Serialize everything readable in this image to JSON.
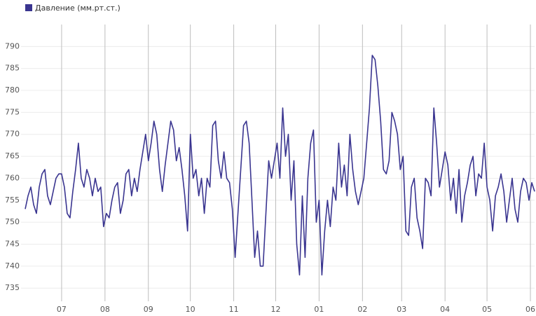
{
  "chart_data": {
    "type": "line",
    "series": [
      {
        "name": "Давление (мм.рт.ст.)",
        "color": "#3a3590",
        "values": [
          753,
          756,
          758,
          754,
          752,
          758,
          761,
          762,
          756,
          754,
          757,
          760,
          761,
          761,
          758,
          752,
          751,
          757,
          762,
          768,
          760,
          758,
          762,
          760,
          756,
          760,
          757,
          758,
          749,
          752,
          751,
          755,
          758,
          759,
          752,
          755,
          761,
          762,
          756,
          760,
          757,
          762,
          766,
          770,
          764,
          768,
          773,
          770,
          762,
          757,
          763,
          768,
          773,
          771,
          764,
          767,
          762,
          756,
          748,
          770,
          760,
          762,
          756,
          760,
          752,
          760,
          758,
          772,
          773,
          764,
          760,
          766,
          760,
          759,
          753,
          742,
          752,
          762,
          772,
          773,
          768,
          755,
          742,
          748,
          740,
          740,
          752,
          764,
          760,
          764,
          768,
          760,
          776,
          765,
          770,
          755,
          764,
          745,
          738,
          756,
          742,
          760,
          768,
          771,
          750,
          755,
          738,
          748,
          755,
          749,
          758,
          755,
          768,
          758,
          763,
          756,
          770,
          762,
          757,
          754,
          757,
          760,
          768,
          776,
          788,
          787,
          781,
          773,
          762,
          761,
          764,
          775,
          773,
          770,
          762,
          765,
          748,
          747,
          758,
          760,
          751,
          748,
          744,
          760,
          759,
          756,
          776,
          768,
          758,
          762,
          766,
          763,
          755,
          760,
          752,
          762,
          750,
          756,
          759,
          763,
          765,
          756,
          761,
          760,
          768,
          758,
          755,
          748,
          756,
          758,
          761,
          757,
          750,
          755,
          760,
          753,
          750,
          757,
          760,
          759,
          755,
          759,
          757
        ]
      }
    ],
    "x": [
      0,
      2,
      4,
      6,
      8,
      10,
      12,
      14,
      16,
      18,
      20,
      22,
      24,
      26,
      28,
      30,
      32,
      34,
      36,
      38,
      40,
      42,
      44,
      46,
      48,
      50,
      52,
      54,
      56,
      58,
      60,
      62,
      64,
      66,
      68,
      70,
      72,
      74,
      76,
      78,
      80,
      82,
      84,
      86,
      88,
      90,
      92,
      94,
      96,
      98,
      100,
      102,
      104,
      106,
      108,
      110,
      112,
      114,
      116,
      118,
      120,
      122,
      124,
      126,
      128,
      130,
      132,
      134,
      136,
      138,
      140,
      142,
      144,
      146,
      148,
      150,
      152,
      154,
      156,
      158,
      160,
      162,
      164,
      166,
      168,
      170,
      172,
      174,
      176,
      178,
      180,
      182,
      184,
      186,
      188,
      190,
      192,
      194,
      196,
      198,
      200,
      202,
      204,
      206,
      208,
      210,
      212,
      214,
      216,
      218,
      220,
      222,
      224,
      226,
      228,
      230,
      232,
      234,
      236,
      238,
      240,
      242,
      244,
      246,
      248,
      250,
      252,
      254,
      256,
      258,
      260,
      262,
      264,
      266,
      268,
      270,
      272,
      274,
      276,
      278,
      280,
      282,
      284,
      286,
      288,
      290,
      292,
      294,
      296,
      298,
      300,
      302,
      304,
      306,
      308,
      310,
      312,
      314,
      316,
      318,
      320,
      322,
      324,
      326,
      328,
      330,
      332,
      334,
      336,
      338,
      340,
      342,
      344,
      346,
      348,
      350,
      352,
      354,
      356,
      358,
      360,
      362,
      364
    ],
    "xlim": [
      -3,
      364
    ],
    "xticks": [
      {
        "value": 26,
        "label": "07"
      },
      {
        "value": 57,
        "label": "08"
      },
      {
        "value": 88,
        "label": "09"
      },
      {
        "value": 118,
        "label": "10"
      },
      {
        "value": 149,
        "label": "11"
      },
      {
        "value": 179,
        "label": "12"
      },
      {
        "value": 210,
        "label": "01"
      },
      {
        "value": 241,
        "label": "02"
      },
      {
        "value": 269,
        "label": "03"
      },
      {
        "value": 300,
        "label": "04"
      },
      {
        "value": 330,
        "label": "05"
      },
      {
        "value": 361,
        "label": "06"
      }
    ],
    "ylim": [
      732,
      795
    ],
    "yticks": [
      735,
      740,
      745,
      750,
      755,
      760,
      765,
      770,
      775,
      780,
      785,
      790
    ],
    "grid": true,
    "legend": "top-left"
  }
}
